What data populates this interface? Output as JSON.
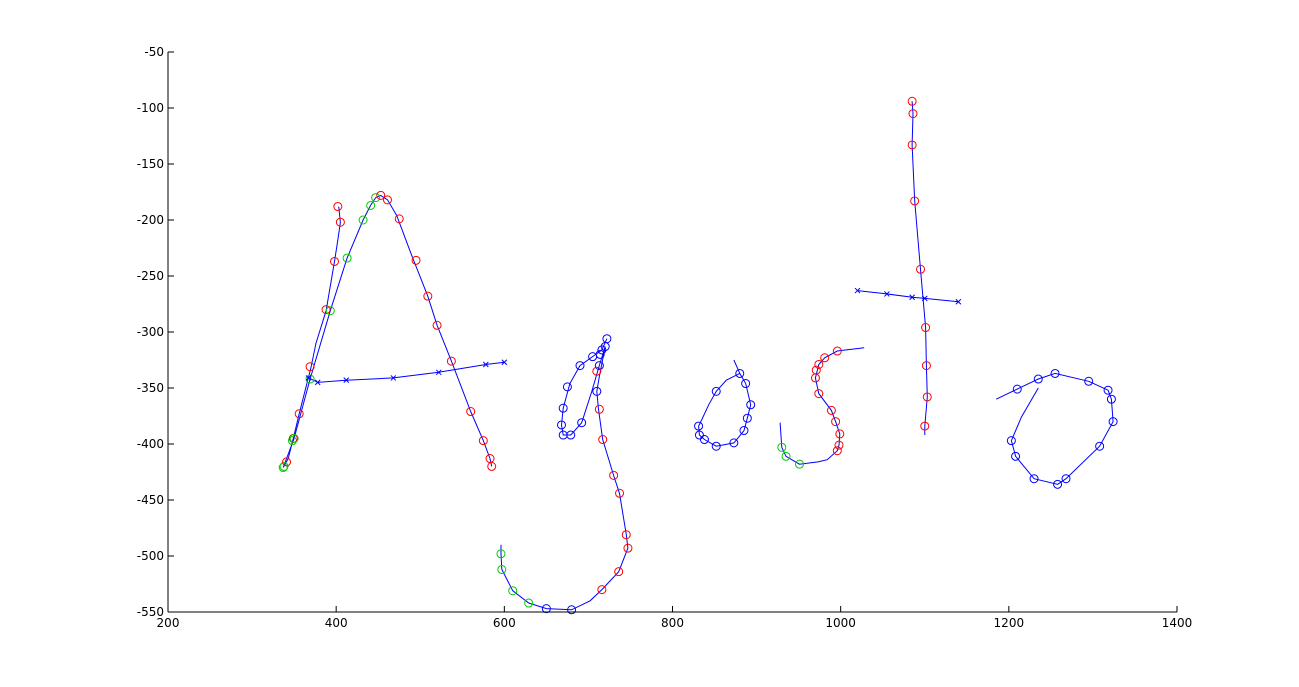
{
  "chart_data": {
    "type": "line",
    "title": "",
    "xlabel": "",
    "ylabel": "",
    "xlim": [
      200,
      1400
    ],
    "ylim": [
      -550,
      -50
    ],
    "xticks": [
      200,
      400,
      600,
      800,
      1000,
      1200,
      1400
    ],
    "yticks": [
      -50,
      -100,
      -150,
      -200,
      -250,
      -300,
      -350,
      -400,
      -450,
      -500,
      -550
    ],
    "grid": false,
    "legend": "none",
    "colors": {
      "line": "#0000ff",
      "marker_red": "#ff0000",
      "marker_green": "#00cc00",
      "marker_blue": "#0000ff",
      "axes": "#000000"
    },
    "strokes": [
      {
        "name": "",
        "points": [
          [
            338,
            -420
          ],
          [
            343,
            -413
          ],
          [
            349,
            -395
          ],
          [
            356,
            -373
          ],
          [
            370,
            -332
          ],
          [
            376,
            -310
          ],
          [
            388,
            -281
          ],
          [
            398,
            -237
          ],
          [
            402,
            -218
          ],
          [
            405,
            -202
          ],
          [
            403,
            -188
          ]
        ],
        "markers": [
          [
            "green",
            338,
            -420
          ],
          [
            "red",
            341,
            -416
          ],
          [
            "green",
            348,
            -397
          ],
          [
            "red",
            349,
            -395
          ],
          [
            "red",
            356,
            -373
          ],
          [
            "red",
            369,
            -331
          ],
          [
            "red",
            388,
            -280
          ],
          [
            "red",
            398,
            -237
          ],
          [
            "red",
            405,
            -202
          ],
          [
            "red",
            402,
            -188
          ]
        ]
      },
      {
        "name": "",
        "points": [
          [
            337,
            -421
          ],
          [
            350,
            -395
          ],
          [
            369,
            -342
          ],
          [
            393,
            -281
          ],
          [
            413,
            -234
          ],
          [
            432,
            -200
          ],
          [
            441,
            -187
          ],
          [
            447,
            -180
          ],
          [
            453,
            -178
          ],
          [
            461,
            -182
          ],
          [
            472,
            -196
          ],
          [
            489,
            -230
          ],
          [
            509,
            -268
          ],
          [
            520,
            -294
          ],
          [
            537,
            -326
          ],
          [
            560,
            -371
          ],
          [
            575,
            -397
          ],
          [
            583,
            -413
          ],
          [
            585,
            -420
          ]
        ],
        "markers": [
          [
            "green",
            337,
            -421
          ],
          [
            "green",
            350,
            -395
          ],
          [
            "green",
            369,
            -342
          ],
          [
            "green",
            393,
            -281
          ],
          [
            "green",
            413,
            -234
          ],
          [
            "green",
            432,
            -200
          ],
          [
            "green",
            441,
            -187
          ],
          [
            "green",
            447,
            -180
          ],
          [
            "red",
            453,
            -178
          ],
          [
            "red",
            461,
            -182
          ],
          [
            "red",
            475,
            -199
          ],
          [
            "red",
            495,
            -236
          ],
          [
            "red",
            509,
            -268
          ],
          [
            "red",
            520,
            -294
          ],
          [
            "red",
            537,
            -326
          ],
          [
            "red",
            560,
            -371
          ],
          [
            "red",
            575,
            -397
          ],
          [
            "red",
            583,
            -413
          ],
          [
            "red",
            585,
            -420
          ]
        ]
      },
      {
        "name": "",
        "points": [
          [
            365,
            -340
          ],
          [
            378,
            -345
          ],
          [
            412,
            -343
          ],
          [
            468,
            -341
          ],
          [
            522,
            -336
          ],
          [
            578,
            -329
          ],
          [
            600,
            -327
          ]
        ],
        "markers": [
          [
            "blue",
            367,
            -341
          ],
          [
            "blue",
            378,
            -345
          ],
          [
            "blue",
            412,
            -343
          ],
          [
            "blue",
            468,
            -341
          ],
          [
            "blue",
            522,
            -336
          ],
          [
            "blue",
            578,
            -329
          ],
          [
            "blue",
            600,
            -327
          ]
        ]
      },
      {
        "name": "",
        "points": [
          [
            722,
            -306
          ],
          [
            716,
            -316
          ],
          [
            705,
            -322
          ],
          [
            690,
            -330
          ],
          [
            678,
            -346
          ],
          [
            670,
            -368
          ],
          [
            668,
            -383
          ],
          [
            670,
            -392
          ],
          [
            679,
            -392
          ],
          [
            692,
            -381
          ],
          [
            704,
            -353
          ],
          [
            713,
            -330
          ],
          [
            720,
            -313
          ],
          [
            713,
            -340
          ],
          [
            710,
            -353
          ],
          [
            712,
            -369
          ],
          [
            717,
            -396
          ],
          [
            730,
            -428
          ],
          [
            737,
            -444
          ],
          [
            745,
            -481
          ],
          [
            747,
            -493
          ],
          [
            736,
            -514
          ],
          [
            716,
            -530
          ],
          [
            702,
            -540
          ],
          [
            680,
            -548
          ],
          [
            650,
            -547
          ],
          [
            629,
            -542
          ],
          [
            610,
            -531
          ],
          [
            597,
            -512
          ],
          [
            596,
            -498
          ],
          [
            596,
            -490
          ]
        ],
        "markers": [
          [
            "blue",
            722,
            -306
          ],
          [
            "blue",
            720,
            -313
          ],
          [
            "blue",
            716,
            -316
          ],
          [
            "blue",
            705,
            -322
          ],
          [
            "blue",
            690,
            -330
          ],
          [
            "blue",
            675,
            -349
          ],
          [
            "blue",
            670,
            -368
          ],
          [
            "blue",
            668,
            -383
          ],
          [
            "blue",
            670,
            -392
          ],
          [
            "blue",
            679,
            -392
          ],
          [
            "blue",
            692,
            -381
          ],
          [
            "blue",
            710,
            -353
          ],
          [
            "blue",
            713,
            -330
          ],
          [
            "blue",
            714,
            -320
          ],
          [
            "red",
            710,
            -335
          ],
          [
            "red",
            713,
            -369
          ],
          [
            "red",
            717,
            -396
          ],
          [
            "red",
            730,
            -428
          ],
          [
            "red",
            737,
            -444
          ],
          [
            "red",
            745,
            -481
          ],
          [
            "red",
            747,
            -493
          ],
          [
            "red",
            736,
            -514
          ],
          [
            "red",
            716,
            -530
          ],
          [
            "blue",
            680,
            -548
          ],
          [
            "blue",
            650,
            -547
          ],
          [
            "green",
            629,
            -542
          ],
          [
            "green",
            610,
            -531
          ],
          [
            "green",
            597,
            -512
          ],
          [
            "green",
            596,
            -498
          ]
        ]
      },
      {
        "name": "",
        "points": [
          [
            873,
            -325
          ],
          [
            880,
            -337
          ],
          [
            887,
            -346
          ],
          [
            893,
            -365
          ],
          [
            889,
            -377
          ],
          [
            885,
            -388
          ],
          [
            873,
            -399
          ],
          [
            852,
            -402
          ],
          [
            838,
            -396
          ],
          [
            832,
            -392
          ],
          [
            831,
            -384
          ],
          [
            835,
            -378
          ],
          [
            843,
            -365
          ],
          [
            852,
            -353
          ],
          [
            864,
            -343
          ],
          [
            880,
            -337
          ]
        ],
        "markers": [
          [
            "blue",
            880,
            -337
          ],
          [
            "blue",
            887,
            -346
          ],
          [
            "blue",
            893,
            -365
          ],
          [
            "blue",
            889,
            -377
          ],
          [
            "blue",
            885,
            -388
          ],
          [
            "blue",
            873,
            -399
          ],
          [
            "blue",
            852,
            -402
          ],
          [
            "blue",
            838,
            -396
          ],
          [
            "blue",
            832,
            -392
          ],
          [
            "blue",
            831,
            -384
          ],
          [
            "blue",
            852,
            -353
          ]
        ]
      },
      {
        "name": "",
        "points": [
          [
            1028,
            -314
          ],
          [
            996,
            -317
          ],
          [
            981,
            -323
          ],
          [
            974,
            -329
          ],
          [
            970,
            -341
          ],
          [
            974,
            -355
          ],
          [
            989,
            -370
          ],
          [
            994,
            -380
          ],
          [
            999,
            -391
          ],
          [
            998,
            -401
          ],
          [
            996,
            -406
          ],
          [
            984,
            -414
          ],
          [
            973,
            -416
          ],
          [
            951,
            -418
          ],
          [
            935,
            -411
          ],
          [
            930,
            -403
          ],
          [
            928,
            -381
          ]
        ],
        "markers": [
          [
            "red",
            996,
            -317
          ],
          [
            "red",
            981,
            -323
          ],
          [
            "red",
            974,
            -329
          ],
          [
            "red",
            971,
            -334
          ],
          [
            "red",
            970,
            -341
          ],
          [
            "red",
            974,
            -355
          ],
          [
            "red",
            989,
            -370
          ],
          [
            "red",
            994,
            -380
          ],
          [
            "red",
            999,
            -391
          ],
          [
            "red",
            998,
            -401
          ],
          [
            "red",
            996,
            -406
          ],
          [
            "green",
            951,
            -418
          ],
          [
            "green",
            935,
            -411
          ],
          [
            "green",
            930,
            -403
          ]
        ]
      },
      {
        "name": "",
        "points": [
          [
            1085,
            -94
          ],
          [
            1086,
            -105
          ],
          [
            1085,
            -133
          ],
          [
            1088,
            -183
          ],
          [
            1095,
            -244
          ],
          [
            1101,
            -296
          ],
          [
            1102,
            -330
          ],
          [
            1103,
            -358
          ],
          [
            1100,
            -384
          ],
          [
            1100,
            -392
          ]
        ],
        "markers": [
          [
            "red",
            1085,
            -94
          ],
          [
            "red",
            1086,
            -105
          ],
          [
            "red",
            1085,
            -133
          ],
          [
            "red",
            1088,
            -183
          ],
          [
            "red",
            1095,
            -244
          ],
          [
            "red",
            1101,
            -296
          ],
          [
            "red",
            1102,
            -330
          ],
          [
            "red",
            1103,
            -358
          ],
          [
            "red",
            1100,
            -384
          ]
        ]
      },
      {
        "name": "",
        "points": [
          [
            1020,
            -263
          ],
          [
            1055,
            -266
          ],
          [
            1085,
            -269
          ],
          [
            1100,
            -270
          ],
          [
            1140,
            -273
          ]
        ],
        "markers": [
          [
            "blue",
            1020,
            -263
          ],
          [
            "blue",
            1055,
            -266
          ],
          [
            "blue",
            1085,
            -269
          ],
          [
            "blue",
            1100,
            -270
          ],
          [
            "blue",
            1140,
            -273
          ]
        ]
      },
      {
        "name": "",
        "points": [
          [
            1185,
            -360
          ],
          [
            1210,
            -351
          ],
          [
            1235,
            -342
          ],
          [
            1255,
            -337
          ],
          [
            1295,
            -344
          ],
          [
            1318,
            -352
          ],
          [
            1322,
            -360
          ],
          [
            1324,
            -380
          ],
          [
            1308,
            -402
          ],
          [
            1268,
            -431
          ],
          [
            1258,
            -436
          ],
          [
            1230,
            -431
          ],
          [
            1208,
            -411
          ],
          [
            1203,
            -397
          ],
          [
            1215,
            -376
          ],
          [
            1235,
            -350
          ]
        ],
        "markers": [
          [
            "blue",
            1210,
            -351
          ],
          [
            "blue",
            1235,
            -342
          ],
          [
            "blue",
            1255,
            -337
          ],
          [
            "blue",
            1295,
            -344
          ],
          [
            "blue",
            1318,
            -352
          ],
          [
            "blue",
            1322,
            -360
          ],
          [
            "blue",
            1324,
            -380
          ],
          [
            "blue",
            1308,
            -402
          ],
          [
            "blue",
            1268,
            -431
          ],
          [
            "blue",
            1258,
            -436
          ],
          [
            "blue",
            1230,
            -431
          ],
          [
            "blue",
            1208,
            -411
          ],
          [
            "blue",
            1203,
            -397
          ]
        ]
      }
    ]
  }
}
